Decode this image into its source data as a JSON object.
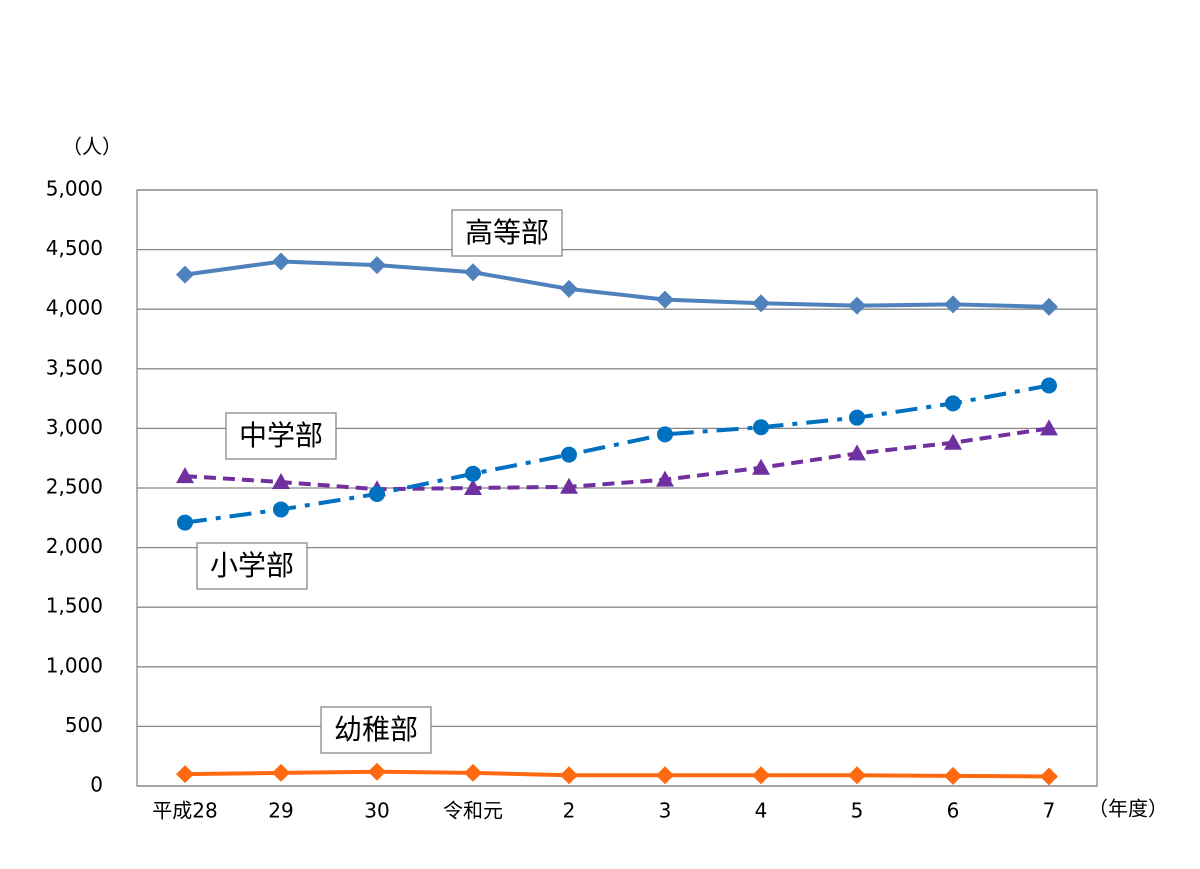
{
  "chart_data": {
    "type": "line",
    "y_label": "（人）",
    "x_label": "（年度）",
    "categories": [
      "平成28",
      "29",
      "30",
      "令和元",
      "2",
      "3",
      "4",
      "5",
      "6",
      "7"
    ],
    "series": [
      {
        "name": "高等部",
        "color": "#4f81bd",
        "dash": "solid",
        "marker": "diamond",
        "values": [
          4290,
          4400,
          4370,
          4310,
          4170,
          4080,
          4050,
          4030,
          4040,
          4020
        ]
      },
      {
        "name": "中学部",
        "color": "#7030a0",
        "dash": "dashed",
        "marker": "triangle",
        "values": [
          2600,
          2550,
          2490,
          2500,
          2510,
          2570,
          2670,
          2790,
          2880,
          3000
        ]
      },
      {
        "name": "小学部",
        "color": "#0070c0",
        "dash": "dash-dot",
        "marker": "circle",
        "values": [
          2210,
          2320,
          2450,
          2620,
          2780,
          2950,
          3010,
          3090,
          3210,
          3360
        ]
      },
      {
        "name": "幼稚部",
        "color": "#ff6a10",
        "dash": "solid",
        "marker": "diamond",
        "values": [
          100,
          110,
          120,
          110,
          90,
          90,
          90,
          90,
          85,
          80
        ]
      }
    ],
    "ylim": [
      0,
      5000
    ],
    "yticks": [
      0,
      500,
      {
        "value": 1000,
        "label": "1,000"
      },
      {
        "value": 1500,
        "label": "1,500"
      },
      {
        "value": 2000,
        "label": "2,000"
      },
      {
        "value": 2500,
        "label": "2,500"
      },
      {
        "value": 3000,
        "label": "3,000"
      },
      {
        "value": 3500,
        "label": "3,500"
      },
      {
        "value": 4000,
        "label": "4,000"
      },
      {
        "value": 4500,
        "label": "4,500"
      },
      {
        "value": 5000,
        "label": "5,000"
      }
    ],
    "grid": true
  }
}
